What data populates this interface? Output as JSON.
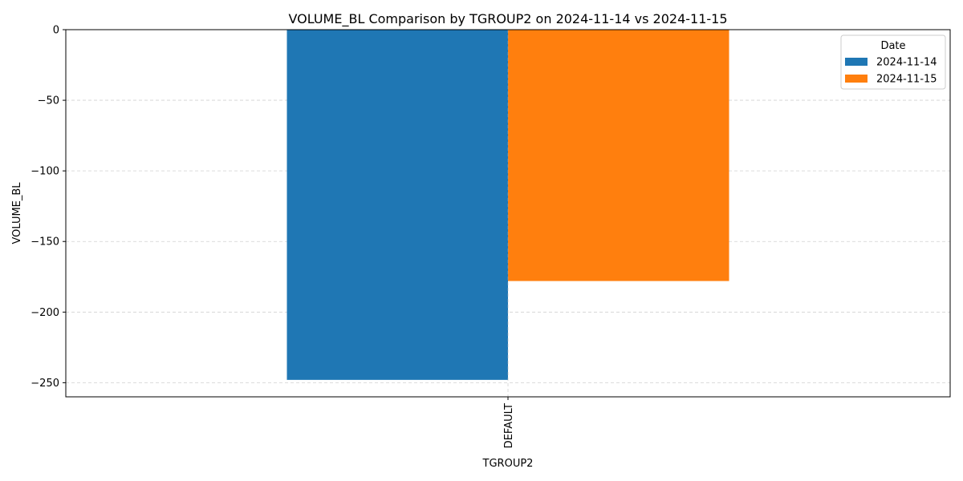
{
  "chart_data": {
    "type": "bar",
    "title": "VOLUME_BL Comparison by TGROUP2 on 2024-11-14 vs 2024-11-15",
    "xlabel": "TGROUP2",
    "ylabel": "VOLUME_BL",
    "categories": [
      "DEFAULT"
    ],
    "series": [
      {
        "name": "2024-11-14",
        "color": "#1f77b4",
        "values": [
          -248
        ]
      },
      {
        "name": "2024-11-15",
        "color": "#ff7f0e",
        "values": [
          -178
        ]
      }
    ],
    "ylim": [
      -260,
      0
    ],
    "yticks": [
      0,
      -50,
      -100,
      -150,
      -200,
      -250
    ],
    "ytick_labels": [
      "0",
      "−50",
      "−100",
      "−150",
      "−200",
      "−250"
    ],
    "grid": true,
    "legend": {
      "title": "Date",
      "placement": "top-right"
    }
  }
}
